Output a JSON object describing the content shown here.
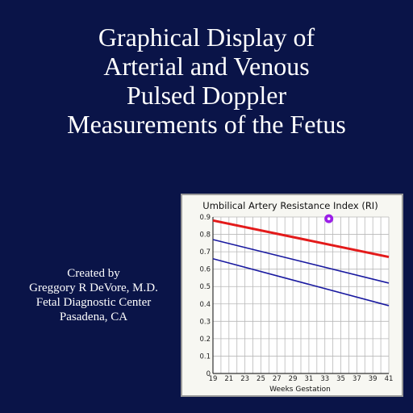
{
  "slide": {
    "title_lines": [
      "Graphical Display of",
      "Arterial and Venous",
      "Pulsed Doppler",
      "Measurements of the Fetus"
    ],
    "credit_lines": [
      "Created by",
      "Greggory R DeVore, M.D.",
      "Fetal Diagnostic Center",
      "Pasadena, CA"
    ],
    "background_color": "#0a1448"
  },
  "chart_data": {
    "type": "line",
    "title": "Umbilical Artery Resistance Index (RI)",
    "xlabel": "Weeks Gestation",
    "ylabel": "",
    "xlim": [
      19,
      41
    ],
    "ylim": [
      0,
      0.9
    ],
    "x_ticks": [
      19,
      21,
      23,
      25,
      27,
      29,
      31,
      33,
      35,
      37,
      39,
      41
    ],
    "y_ticks": [
      0,
      0.1,
      0.2,
      0.3,
      0.4,
      0.5,
      0.6,
      0.7,
      0.8,
      0.9
    ],
    "grid": true,
    "series": [
      {
        "values_x": [
          19,
          41
        ],
        "values_y": [
          0.88,
          0.67
        ],
        "color": "#e31a1a"
      },
      {
        "values_x": [
          19,
          41
        ],
        "values_y": [
          0.77,
          0.52
        ],
        "color": "#1a1aa0"
      },
      {
        "values_x": [
          19,
          41
        ],
        "values_y": [
          0.66,
          0.39
        ],
        "color": "#1a1aa0"
      }
    ],
    "points": [
      {
        "x": 33.5,
        "y": 0.89,
        "color": "#9b1fe8"
      }
    ]
  }
}
